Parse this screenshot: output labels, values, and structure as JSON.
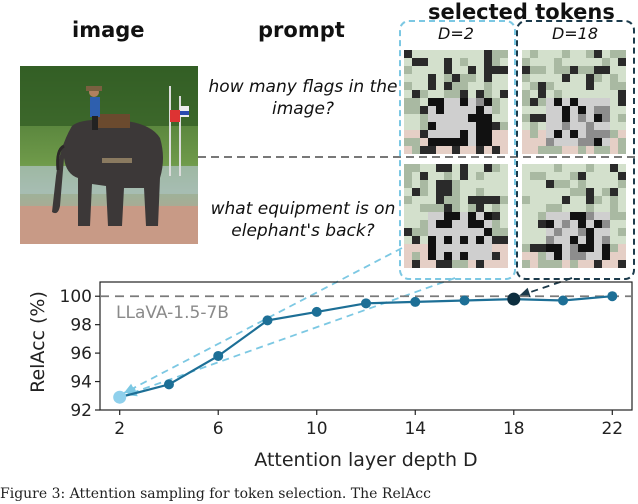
{
  "headers": {
    "image": "image",
    "prompt": "prompt",
    "tokens": "selected tokens"
  },
  "depth_labels": [
    "D=2",
    "D=18"
  ],
  "prompts": [
    "how many flags in the image?",
    "what equipment is on elephant's back?"
  ],
  "caption": "Figure 3: Attention sampling for token selection. The RelAcc",
  "colors": {
    "line": "#1d6f96",
    "light_marker": "#8fd0ec",
    "dark_marker": "#0d2e3f",
    "light_box": "#7cc8e3",
    "dark_box": "#1b3a4b"
  },
  "chart_data": {
    "type": "line",
    "xlabel": "Attention layer depth D",
    "ylabel": "RelAcc (%)",
    "xticks": [
      2,
      6,
      10,
      14,
      18,
      22
    ],
    "yticks": [
      92,
      94,
      96,
      98,
      100
    ],
    "xlim": [
      1.2,
      22.8
    ],
    "ylim": [
      92,
      101
    ],
    "reference_line": {
      "y": 100,
      "label": "LLaVA-1.5-7B"
    },
    "series": [
      {
        "x": [
          2,
          4,
          6,
          8,
          10,
          12,
          14,
          16,
          18,
          20,
          22
        ],
        "values": [
          92.9,
          93.8,
          95.8,
          98.3,
          98.9,
          99.5,
          99.6,
          99.7,
          99.8,
          99.7,
          100.0
        ]
      }
    ],
    "highlight": [
      {
        "x": 2,
        "style": "light"
      },
      {
        "x": 18,
        "style": "dark"
      }
    ]
  }
}
